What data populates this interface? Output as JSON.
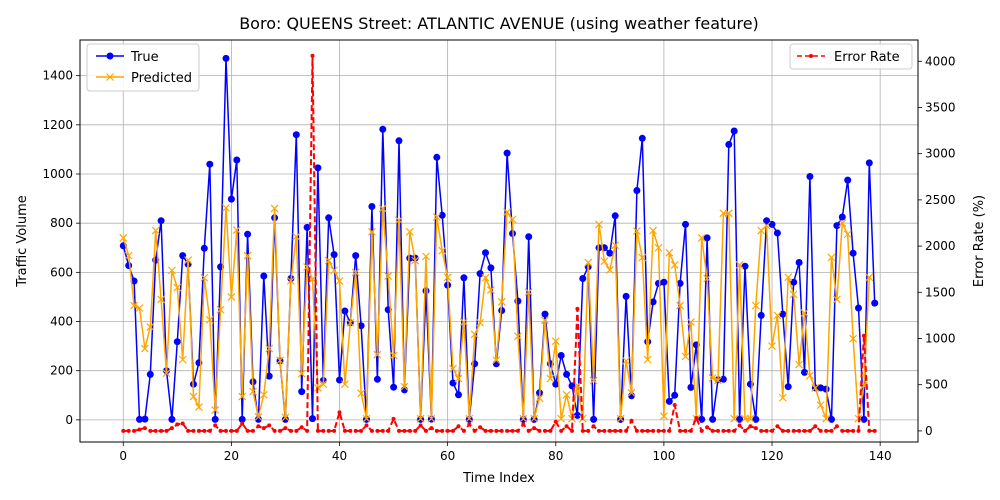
{
  "chart_data": {
    "type": "line",
    "title": "Boro: QUEENS Street: ATLANTIC AVENUE (using weather feature)",
    "xlabel": "Time Index",
    "ylabel": "Traffic Volume",
    "y2label": "Error Rate (%)",
    "xlim": [
      -8,
      147
    ],
    "ylim": [
      -90,
      1545
    ],
    "y2lim": [
      -120,
      4230
    ],
    "xticks": [
      0,
      20,
      40,
      60,
      80,
      100,
      120,
      140
    ],
    "yticks": [
      0,
      200,
      400,
      600,
      800,
      1000,
      1200,
      1400
    ],
    "y2ticks": [
      0,
      500,
      1000,
      1500,
      2000,
      2500,
      3000,
      3500,
      4000
    ],
    "grid": true,
    "legend_left_placement": "upper-left",
    "legend_right_placement": "upper-right",
    "series": [
      {
        "name": "True",
        "axis": "left",
        "color": "#0000ff",
        "marker": "o",
        "values": [
          708,
          628,
          565,
          2,
          3,
          185,
          650,
          810,
          200,
          2,
          318,
          668,
          633,
          145,
          232,
          698,
          1040,
          2,
          622,
          1470,
          898,
          1057,
          2,
          755,
          155,
          2,
          585,
          178,
          822,
          240,
          2,
          575,
          1160,
          115,
          783,
          5,
          1025,
          160,
          822,
          672,
          162,
          443,
          395,
          668,
          383,
          2,
          868,
          165,
          1182,
          448,
          133,
          1135,
          122,
          658,
          658,
          2,
          525,
          3,
          1068,
          832,
          548,
          150,
          102,
          578,
          2,
          228,
          595,
          680,
          618,
          228,
          445,
          1085,
          758,
          483,
          2,
          745,
          2,
          110,
          430,
          228,
          145,
          262,
          185,
          138,
          18,
          575,
          622,
          2,
          700,
          700,
          678,
          830,
          2,
          502,
          98,
          933,
          1145,
          318,
          480,
          555,
          560,
          75,
          100,
          555,
          795,
          132,
          305,
          2,
          740,
          2,
          163,
          165,
          1120,
          1175,
          2,
          625,
          145,
          2,
          425,
          810,
          795,
          760,
          430,
          135,
          560,
          640,
          193,
          990,
          130,
          130,
          125,
          2,
          790,
          825,
          975,
          678,
          455,
          2,
          1045,
          475
        ]
      },
      {
        "name": "Predicted",
        "axis": "left",
        "color": "#ffa500",
        "marker": "x",
        "values": [
          740,
          668,
          465,
          455,
          290,
          378,
          770,
          490,
          190,
          608,
          538,
          245,
          650,
          95,
          52,
          578,
          407,
          40,
          448,
          862,
          500,
          772,
          95,
          668,
          115,
          12,
          102,
          290,
          860,
          242,
          10,
          565,
          745,
          188,
          622,
          572,
          130,
          145,
          648,
          608,
          565,
          145,
          395,
          600,
          108,
          5,
          765,
          265,
          860,
          585,
          262,
          812,
          135,
          765,
          648,
          5,
          665,
          5,
          825,
          688,
          580,
          208,
          168,
          398,
          5,
          348,
          395,
          578,
          528,
          243,
          480,
          845,
          815,
          340,
          5,
          520,
          5,
          88,
          405,
          168,
          320,
          5,
          102,
          5,
          140,
          5,
          640,
          160,
          795,
          645,
          610,
          710,
          5,
          240,
          110,
          768,
          660,
          245,
          770,
          700,
          15,
          680,
          630,
          465,
          258,
          398,
          5,
          740,
          575,
          170,
          160,
          840,
          840,
          5,
          630,
          5,
          5,
          465,
          770,
          790,
          300,
          425,
          90,
          580,
          510,
          225,
          435,
          180,
          130,
          60,
          5,
          660,
          490,
          800,
          755,
          330,
          5,
          140,
          580
        ]
      },
      {
        "name": "Error Rate",
        "axis": "right",
        "color": "#ff0000",
        "marker": ".",
        "values": [
          0,
          0,
          0,
          15,
          30,
          0,
          0,
          0,
          0,
          30,
          70,
          80,
          0,
          0,
          0,
          0,
          0,
          60,
          0,
          0,
          0,
          0,
          80,
          0,
          0,
          50,
          30,
          60,
          0,
          0,
          30,
          0,
          0,
          40,
          0,
          4060,
          0,
          0,
          0,
          0,
          200,
          0,
          0,
          0,
          0,
          60,
          0,
          0,
          0,
          0,
          130,
          0,
          0,
          0,
          0,
          60,
          0,
          30,
          0,
          0,
          0,
          0,
          50,
          0,
          70,
          0,
          40,
          0,
          0,
          0,
          0,
          0,
          0,
          0,
          70,
          0,
          30,
          0,
          0,
          0,
          100,
          0,
          50,
          0,
          1320,
          0,
          0,
          50,
          0,
          0,
          0,
          0,
          0,
          0,
          110,
          0,
          0,
          0,
          0,
          0,
          0,
          0,
          280,
          0,
          0,
          0,
          140,
          0,
          40,
          0,
          0,
          0,
          0,
          0,
          60,
          0,
          50,
          30,
          0,
          0,
          0,
          50,
          0,
          0,
          0,
          0,
          0,
          0,
          50,
          0,
          0,
          0,
          50,
          0,
          0,
          0,
          0,
          1030,
          0,
          0
        ]
      }
    ]
  }
}
